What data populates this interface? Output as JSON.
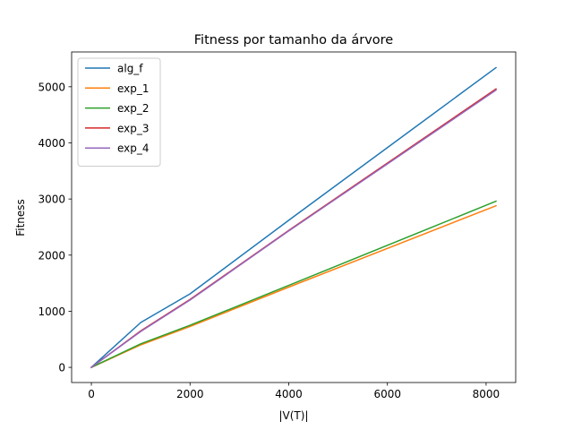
{
  "chart_data": {
    "type": "line",
    "title": "Fitness por tamanho da árvore",
    "xlabel": "|V(T)|",
    "ylabel": "Fitness",
    "xlim": [
      -400,
      8600
    ],
    "ylim": [
      -270,
      5620
    ],
    "xticks": [
      0,
      2000,
      4000,
      6000,
      8000
    ],
    "yticks": [
      0,
      1000,
      2000,
      3000,
      4000,
      5000
    ],
    "grid": false,
    "legend_position": "top-left",
    "series": [
      {
        "name": "alg_f",
        "color": "#1f77b4",
        "x": [
          0,
          1000,
          2000,
          4000,
          8200
        ],
        "y": [
          0,
          800,
          1310,
          2620,
          5340
        ]
      },
      {
        "name": "exp_1",
        "color": "#ff7f0e",
        "x": [
          0,
          1000,
          2000,
          4000,
          8200
        ],
        "y": [
          0,
          400,
          730,
          1430,
          2880
        ]
      },
      {
        "name": "exp_2",
        "color": "#2ca02c",
        "x": [
          0,
          1000,
          2000,
          4000,
          8200
        ],
        "y": [
          0,
          420,
          750,
          1460,
          2960
        ]
      },
      {
        "name": "exp_3",
        "color": "#d62728",
        "x": [
          0,
          1000,
          2000,
          4000,
          8200
        ],
        "y": [
          0,
          650,
          1210,
          2440,
          4960
        ]
      },
      {
        "name": "exp_4",
        "color": "#9467bd",
        "x": [
          0,
          1000,
          2000,
          4000,
          8200
        ],
        "y": [
          0,
          640,
          1200,
          2430,
          4940
        ]
      }
    ]
  }
}
